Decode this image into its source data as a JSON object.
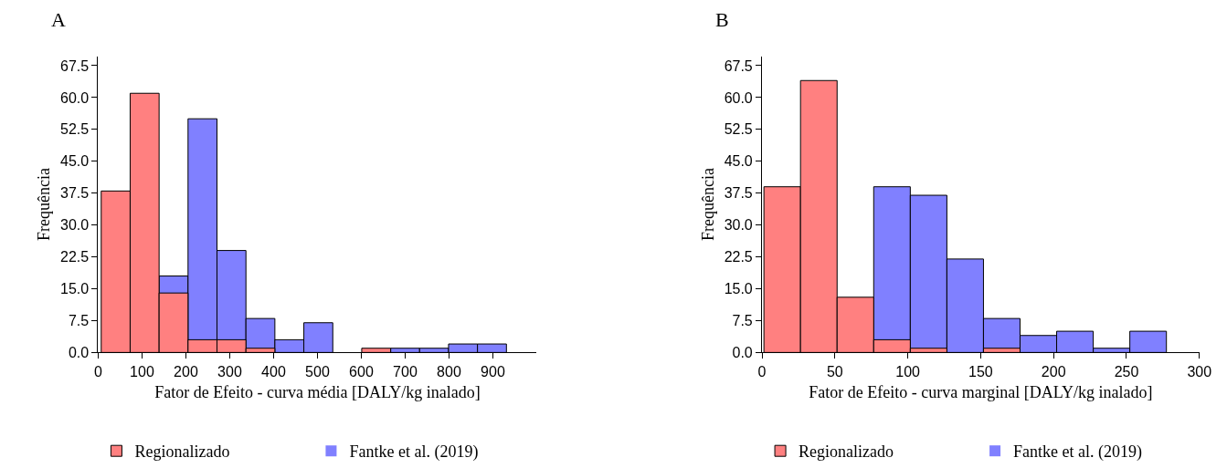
{
  "chart_data": [
    {
      "type": "histogram",
      "title": "A",
      "xlabel": "Fator de Efeito - curva média [DALY/kg inalado]",
      "ylabel": "Frequência",
      "xlim": [
        0,
        1000
      ],
      "xticks": [
        0,
        100,
        200,
        300,
        400,
        500,
        600,
        700,
        800,
        900
      ],
      "ylim": [
        0,
        69.7
      ],
      "yticks": [
        {
          "value": 0,
          "label": "0.0"
        },
        7.5,
        {
          "value": 15,
          "label": "15.0"
        },
        22.5,
        {
          "value": 30,
          "label": "30.0"
        },
        37.5,
        {
          "value": 45,
          "label": "45.0"
        },
        52.5,
        {
          "value": 60,
          "label": "60.0"
        },
        67.5
      ],
      "legend": "bottom",
      "bins": [
        7,
        73,
        139,
        205,
        271,
        337,
        403,
        469,
        535,
        601,
        667,
        733,
        799,
        865,
        931
      ],
      "series": [
        {
          "name": "Fantke et al. (2019)",
          "color": "#8080ff",
          "values": [
            0,
            0,
            18,
            55,
            24,
            8,
            3,
            7,
            0,
            0,
            1,
            1,
            2,
            2
          ]
        },
        {
          "name": "Regionalizado",
          "color": "#ff8080",
          "values": [
            38,
            61,
            14,
            3,
            3,
            1,
            0,
            0,
            0,
            1,
            0,
            0,
            0,
            0
          ]
        }
      ]
    },
    {
      "type": "histogram",
      "title": "B",
      "xlabel": "Fator de Efeito - curva marginal [DALY/kg inalado]",
      "ylabel": "Frequência",
      "xlim": [
        0,
        300
      ],
      "xticks": [
        0,
        50,
        100,
        150,
        200,
        250,
        300
      ],
      "ylim": [
        0,
        69.7
      ],
      "yticks": [
        {
          "value": 0,
          "label": "0.0"
        },
        7.5,
        {
          "value": 15,
          "label": "15.0"
        },
        22.5,
        {
          "value": 30,
          "label": "30.0"
        },
        37.5,
        {
          "value": 45,
          "label": "45.0"
        },
        52.5,
        {
          "value": 60,
          "label": "60.0"
        },
        67.5
      ],
      "legend": "bottom",
      "bins": [
        1.3,
        26.4,
        51.5,
        76.6,
        101.7,
        126.8,
        151.9,
        177,
        202.1,
        227.2,
        252.3,
        277.4
      ],
      "series": [
        {
          "name": "Fantke et al. (2019)",
          "color": "#8080ff",
          "values": [
            0,
            0,
            0,
            39,
            37,
            22,
            8,
            4,
            5,
            1,
            5
          ]
        },
        {
          "name": "Regionalizado",
          "color": "#ff8080",
          "values": [
            39,
            64,
            13,
            3,
            1,
            0,
            1,
            0,
            0,
            0,
            0
          ]
        }
      ]
    }
  ]
}
